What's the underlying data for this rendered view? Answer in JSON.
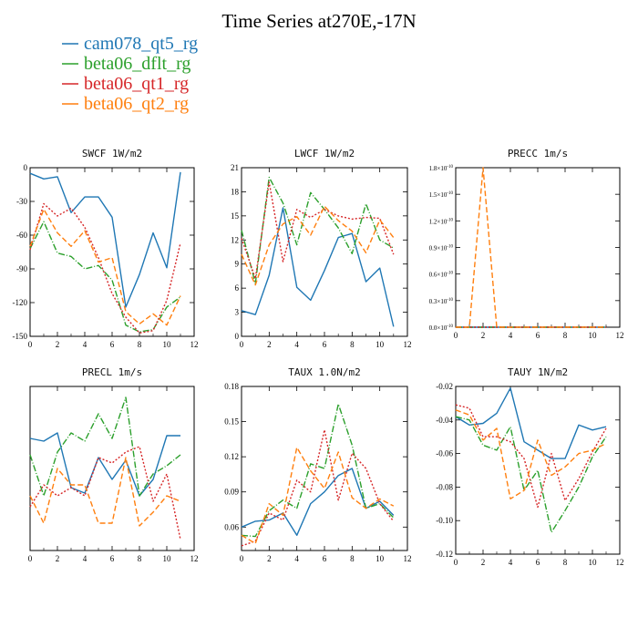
{
  "title": "Time Series at270E,-17N",
  "colors": {
    "cam078_qt5_rg": "#1f77b4",
    "beta06_dflt_rg": "#2ca02c",
    "beta06_qt1_rg": "#d62728",
    "beta06_qt2_rg": "#ff7f0e"
  },
  "legend": [
    {
      "name": "cam078_qt5_rg",
      "color": "#1f77b4"
    },
    {
      "name": "beta06_dflt_rg",
      "color": "#2ca02c"
    },
    {
      "name": "beta06_qt1_rg",
      "color": "#d62728"
    },
    {
      "name": "beta06_qt2_rg",
      "color": "#ff7f0e"
    }
  ],
  "chart_data": [
    {
      "type": "line",
      "title": "SWCF   1W/m2",
      "x": [
        0,
        1,
        2,
        3,
        4,
        5,
        6,
        7,
        8,
        9,
        10,
        11
      ],
      "xlim": [
        0,
        12
      ],
      "xticks": [
        "0",
        "2",
        "4",
        "6",
        "8",
        "10",
        "12"
      ],
      "ylim": [
        -150,
        0
      ],
      "yticks": [
        "0",
        "-30",
        "-60",
        "-90",
        "-120",
        "-150"
      ],
      "series": [
        {
          "name": "cam078_qt5_rg",
          "values": [
            -5,
            -10,
            -8,
            -40,
            -26,
            -26,
            -44,
            -124,
            -95,
            -58,
            -89,
            -4
          ]
        },
        {
          "name": "beta06_dflt_rg",
          "values": [
            -72,
            -48,
            -76,
            -79,
            -90,
            -87,
            -100,
            -140,
            -146,
            -144,
            -124,
            -115
          ]
        },
        {
          "name": "beta06_qt1_rg",
          "values": [
            -73,
            -32,
            -43,
            -36,
            -53,
            -80,
            -112,
            -133,
            -147,
            -145,
            -118,
            -67
          ]
        },
        {
          "name": "beta06_qt2_rg",
          "values": [
            -70,
            -37,
            -58,
            -70,
            -56,
            -84,
            -80,
            -128,
            -139,
            -130,
            -140,
            -114
          ]
        }
      ]
    },
    {
      "type": "line",
      "title": "LWCF   1W/m2",
      "x": [
        0,
        1,
        2,
        3,
        4,
        5,
        6,
        7,
        8,
        9,
        10,
        11
      ],
      "xlim": [
        0,
        12
      ],
      "xticks": [
        "0",
        "2",
        "4",
        "6",
        "8",
        "10",
        "12"
      ],
      "ylim": [
        0,
        21
      ],
      "yticks": [
        "21",
        "18",
        "15",
        "12",
        "9",
        "6",
        "3",
        "0"
      ],
      "series": [
        {
          "name": "cam078_qt5_rg",
          "values": [
            3.2,
            2.7,
            7.6,
            16.0,
            6.1,
            4.5,
            8.2,
            12.3,
            12.8,
            6.8,
            8.5,
            1.2
          ]
        },
        {
          "name": "beta06_dflt_rg",
          "values": [
            13.2,
            6.6,
            19.8,
            16.6,
            11.4,
            17.9,
            15.8,
            13.5,
            10.3,
            16.5,
            12.0,
            11.0
          ]
        },
        {
          "name": "beta06_qt1_rg",
          "values": [
            12.2,
            7.2,
            19.2,
            9.3,
            15.8,
            14.8,
            15.8,
            15.0,
            14.6,
            14.8,
            14.7,
            10.2
          ]
        },
        {
          "name": "beta06_qt2_rg",
          "values": [
            10.2,
            6.4,
            11.4,
            14.0,
            14.9,
            12.6,
            16.2,
            14.4,
            13.1,
            10.4,
            14.5,
            12.3
          ]
        }
      ]
    },
    {
      "type": "line",
      "title": "PRECC   1m/s",
      "x": [
        0,
        1,
        2,
        3,
        4,
        5,
        6,
        7,
        8,
        9,
        10,
        11
      ],
      "xlim": [
        0,
        12
      ],
      "xticks": [
        "0",
        "2",
        "4",
        "6",
        "8",
        "10",
        "12"
      ],
      "ylim": [
        0,
        1.8
      ],
      "y_multiplier": "×10",
      "y_exponent": "-10",
      "yticks": [
        "1.8",
        "1.5",
        "1.2",
        "0.9",
        "0.6",
        "0.3",
        "0.0"
      ],
      "series": [
        {
          "name": "cam078_qt5_rg",
          "values": [
            0,
            0,
            0,
            0,
            0,
            0,
            0,
            0,
            0,
            0,
            0,
            0
          ]
        },
        {
          "name": "beta06_dflt_rg",
          "values": [
            0,
            0,
            0,
            0,
            0,
            0,
            0,
            0,
            0,
            0,
            0,
            0
          ]
        },
        {
          "name": "beta06_qt1_rg",
          "values": [
            0,
            0,
            0,
            0,
            0,
            0,
            0,
            0,
            0,
            0,
            0,
            0
          ]
        },
        {
          "name": "beta06_qt2_rg",
          "values": [
            0,
            0,
            1.8,
            0,
            0,
            0,
            0,
            0,
            0,
            0,
            0,
            0
          ]
        }
      ]
    },
    {
      "type": "line",
      "title": "PRECL   1m/s",
      "x": [
        0,
        1,
        2,
        3,
        4,
        5,
        6,
        7,
        8,
        9,
        10,
        11
      ],
      "xlim": [
        0,
        12
      ],
      "xticks": [
        "0",
        "2",
        "4",
        "6",
        "8",
        "10",
        "12"
      ],
      "ylim": [
        0,
        6
      ],
      "yticks": [],
      "series": [
        {
          "name": "cam078_qt5_rg",
          "values": [
            4.1,
            4.0,
            4.3,
            2.3,
            2.1,
            3.4,
            2.6,
            3.3,
            2.0,
            2.6,
            4.2,
            4.2
          ]
        },
        {
          "name": "beta06_dflt_rg",
          "values": [
            3.5,
            2.0,
            3.6,
            4.3,
            4.0,
            5.0,
            4.1,
            5.6,
            2.0,
            2.8,
            3.1,
            3.5
          ]
        },
        {
          "name": "beta06_qt1_rg",
          "values": [
            1.6,
            2.4,
            2.0,
            2.3,
            2.0,
            3.4,
            3.2,
            3.6,
            3.8,
            1.8,
            2.8,
            0.4
          ]
        },
        {
          "name": "beta06_qt2_rg",
          "values": [
            2.0,
            1.0,
            3.0,
            2.4,
            2.4,
            1.0,
            1.0,
            3.4,
            0.9,
            1.4,
            2.0,
            1.8
          ]
        }
      ]
    },
    {
      "type": "line",
      "title": "TAUX   1.0N/m2",
      "x": [
        0,
        1,
        2,
        3,
        4,
        5,
        6,
        7,
        8,
        9,
        10,
        11
      ],
      "xlim": [
        0,
        12
      ],
      "xticks": [
        "0",
        "2",
        "4",
        "6",
        "8",
        "10",
        "12"
      ],
      "ylim": [
        0.04,
        0.18
      ],
      "yticks": [
        "0.18",
        "0.15",
        "0.12",
        "0.09",
        "0.06"
      ],
      "series": [
        {
          "name": "cam078_qt5_rg",
          "values": [
            0.06,
            0.065,
            0.066,
            0.072,
            0.053,
            0.08,
            0.09,
            0.104,
            0.11,
            0.076,
            0.082,
            0.07
          ]
        },
        {
          "name": "beta06_dflt_rg",
          "values": [
            0.053,
            0.052,
            0.074,
            0.083,
            0.076,
            0.114,
            0.11,
            0.165,
            0.13,
            0.076,
            0.08,
            0.068
          ]
        },
        {
          "name": "beta06_qt1_rg",
          "values": [
            0.044,
            0.048,
            0.072,
            0.066,
            0.1,
            0.09,
            0.143,
            0.083,
            0.123,
            0.11,
            0.08,
            0.065
          ]
        },
        {
          "name": "beta06_qt2_rg",
          "values": [
            0.053,
            0.046,
            0.08,
            0.07,
            0.128,
            0.108,
            0.093,
            0.124,
            0.085,
            0.076,
            0.084,
            0.078
          ]
        }
      ]
    },
    {
      "type": "line",
      "title": "TAUY   1N/m2",
      "x": [
        0,
        1,
        2,
        3,
        4,
        5,
        6,
        7,
        8,
        9,
        10,
        11
      ],
      "xlim": [
        0,
        12
      ],
      "xticks": [
        "0",
        "2",
        "4",
        "6",
        "8",
        "10",
        "12"
      ],
      "ylim": [
        -0.12,
        -0.02
      ],
      "yticks": [
        "-0.02",
        "-0.04",
        "-0.06",
        "-0.08",
        "-0.10",
        "-0.12"
      ],
      "series": [
        {
          "name": "cam078_qt5_rg",
          "values": [
            -0.038,
            -0.043,
            -0.042,
            -0.036,
            -0.021,
            -0.053,
            -0.058,
            -0.063,
            -0.063,
            -0.043,
            -0.046,
            -0.044
          ]
        },
        {
          "name": "beta06_dflt_rg",
          "values": [
            -0.038,
            -0.04,
            -0.055,
            -0.058,
            -0.044,
            -0.082,
            -0.07,
            -0.107,
            -0.094,
            -0.08,
            -0.062,
            -0.05
          ]
        },
        {
          "name": "beta06_qt1_rg",
          "values": [
            -0.031,
            -0.033,
            -0.05,
            -0.05,
            -0.053,
            -0.063,
            -0.092,
            -0.06,
            -0.088,
            -0.075,
            -0.059,
            -0.045
          ]
        },
        {
          "name": "beta06_qt2_rg",
          "values": [
            -0.034,
            -0.037,
            -0.052,
            -0.045,
            -0.087,
            -0.082,
            -0.052,
            -0.073,
            -0.068,
            -0.06,
            -0.058,
            -0.054
          ]
        }
      ]
    }
  ]
}
